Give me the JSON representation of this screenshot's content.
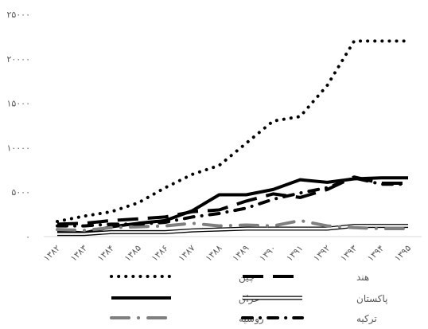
{
  "chart_data": {
    "type": "line",
    "title": "",
    "xlabel": "",
    "ylabel": "",
    "categories": [
      "۱۳۸۲",
      "۱۳۸۳",
      "۱۳۸۴",
      "۱۳۸۵",
      "۱۳۸۶",
      "۱۳۸۷",
      "۱۳۸۸",
      "۱۳۸۹",
      "۱۳۹۰",
      "۱۳۹۱",
      "۱۳۹۲",
      "۱۳۹۳",
      "۱۳۹۴",
      "۱۳۹۵"
    ],
    "y_ticks": [
      0,
      5000,
      10000,
      15000,
      20000,
      25000
    ],
    "y_tick_labels": [
      "۰",
      "۵۰۰۰",
      "۱۰۰۰۰",
      "۱۵۰۰۰",
      "۲۰۰۰۰",
      "۲۵۰۰۰"
    ],
    "ylim": [
      0,
      25000
    ],
    "grid": false,
    "legend_position": "bottom",
    "series": [
      {
        "name": "چین",
        "style": "dotted",
        "color": "#000000",
        "values": [
          1700,
          2300,
          2800,
          3800,
          5500,
          7000,
          8000,
          10500,
          13000,
          13500,
          17000,
          22000,
          22000,
          22000
        ]
      },
      {
        "name": "هند",
        "style": "longdash",
        "color": "#000000",
        "values": [
          1400,
          1500,
          1800,
          2000,
          2200,
          2800,
          3000,
          4000,
          4800,
          4400,
          5300,
          6700,
          6000,
          6000
        ]
      },
      {
        "name": "عراق",
        "style": "solid",
        "color": "#000000",
        "values": [
          600,
          400,
          1100,
          1500,
          1800,
          2900,
          4700,
          4700,
          5300,
          6400,
          6100,
          6500,
          6600,
          6600
        ]
      },
      {
        "name": "پاکستان",
        "style": "hollow",
        "color": "#000000",
        "values": [
          300,
          300,
          500,
          500,
          500,
          700,
          800,
          900,
          900,
          900,
          900,
          1200,
          1200,
          1200
        ]
      },
      {
        "name": "روسیه",
        "style": "gray-dash-dot",
        "color": "#7f7f7f",
        "values": [
          800,
          700,
          1000,
          1100,
          1200,
          1500,
          1200,
          1300,
          1200,
          1800,
          1200,
          1000,
          900,
          900
        ]
      },
      {
        "name": "ترکیه",
        "style": "dash-dot",
        "color": "#000000",
        "values": [
          1200,
          1200,
          1400,
          1400,
          1600,
          2200,
          2600,
          3200,
          4200,
          4900,
          5500,
          6600,
          5900,
          5900
        ]
      }
    ]
  }
}
